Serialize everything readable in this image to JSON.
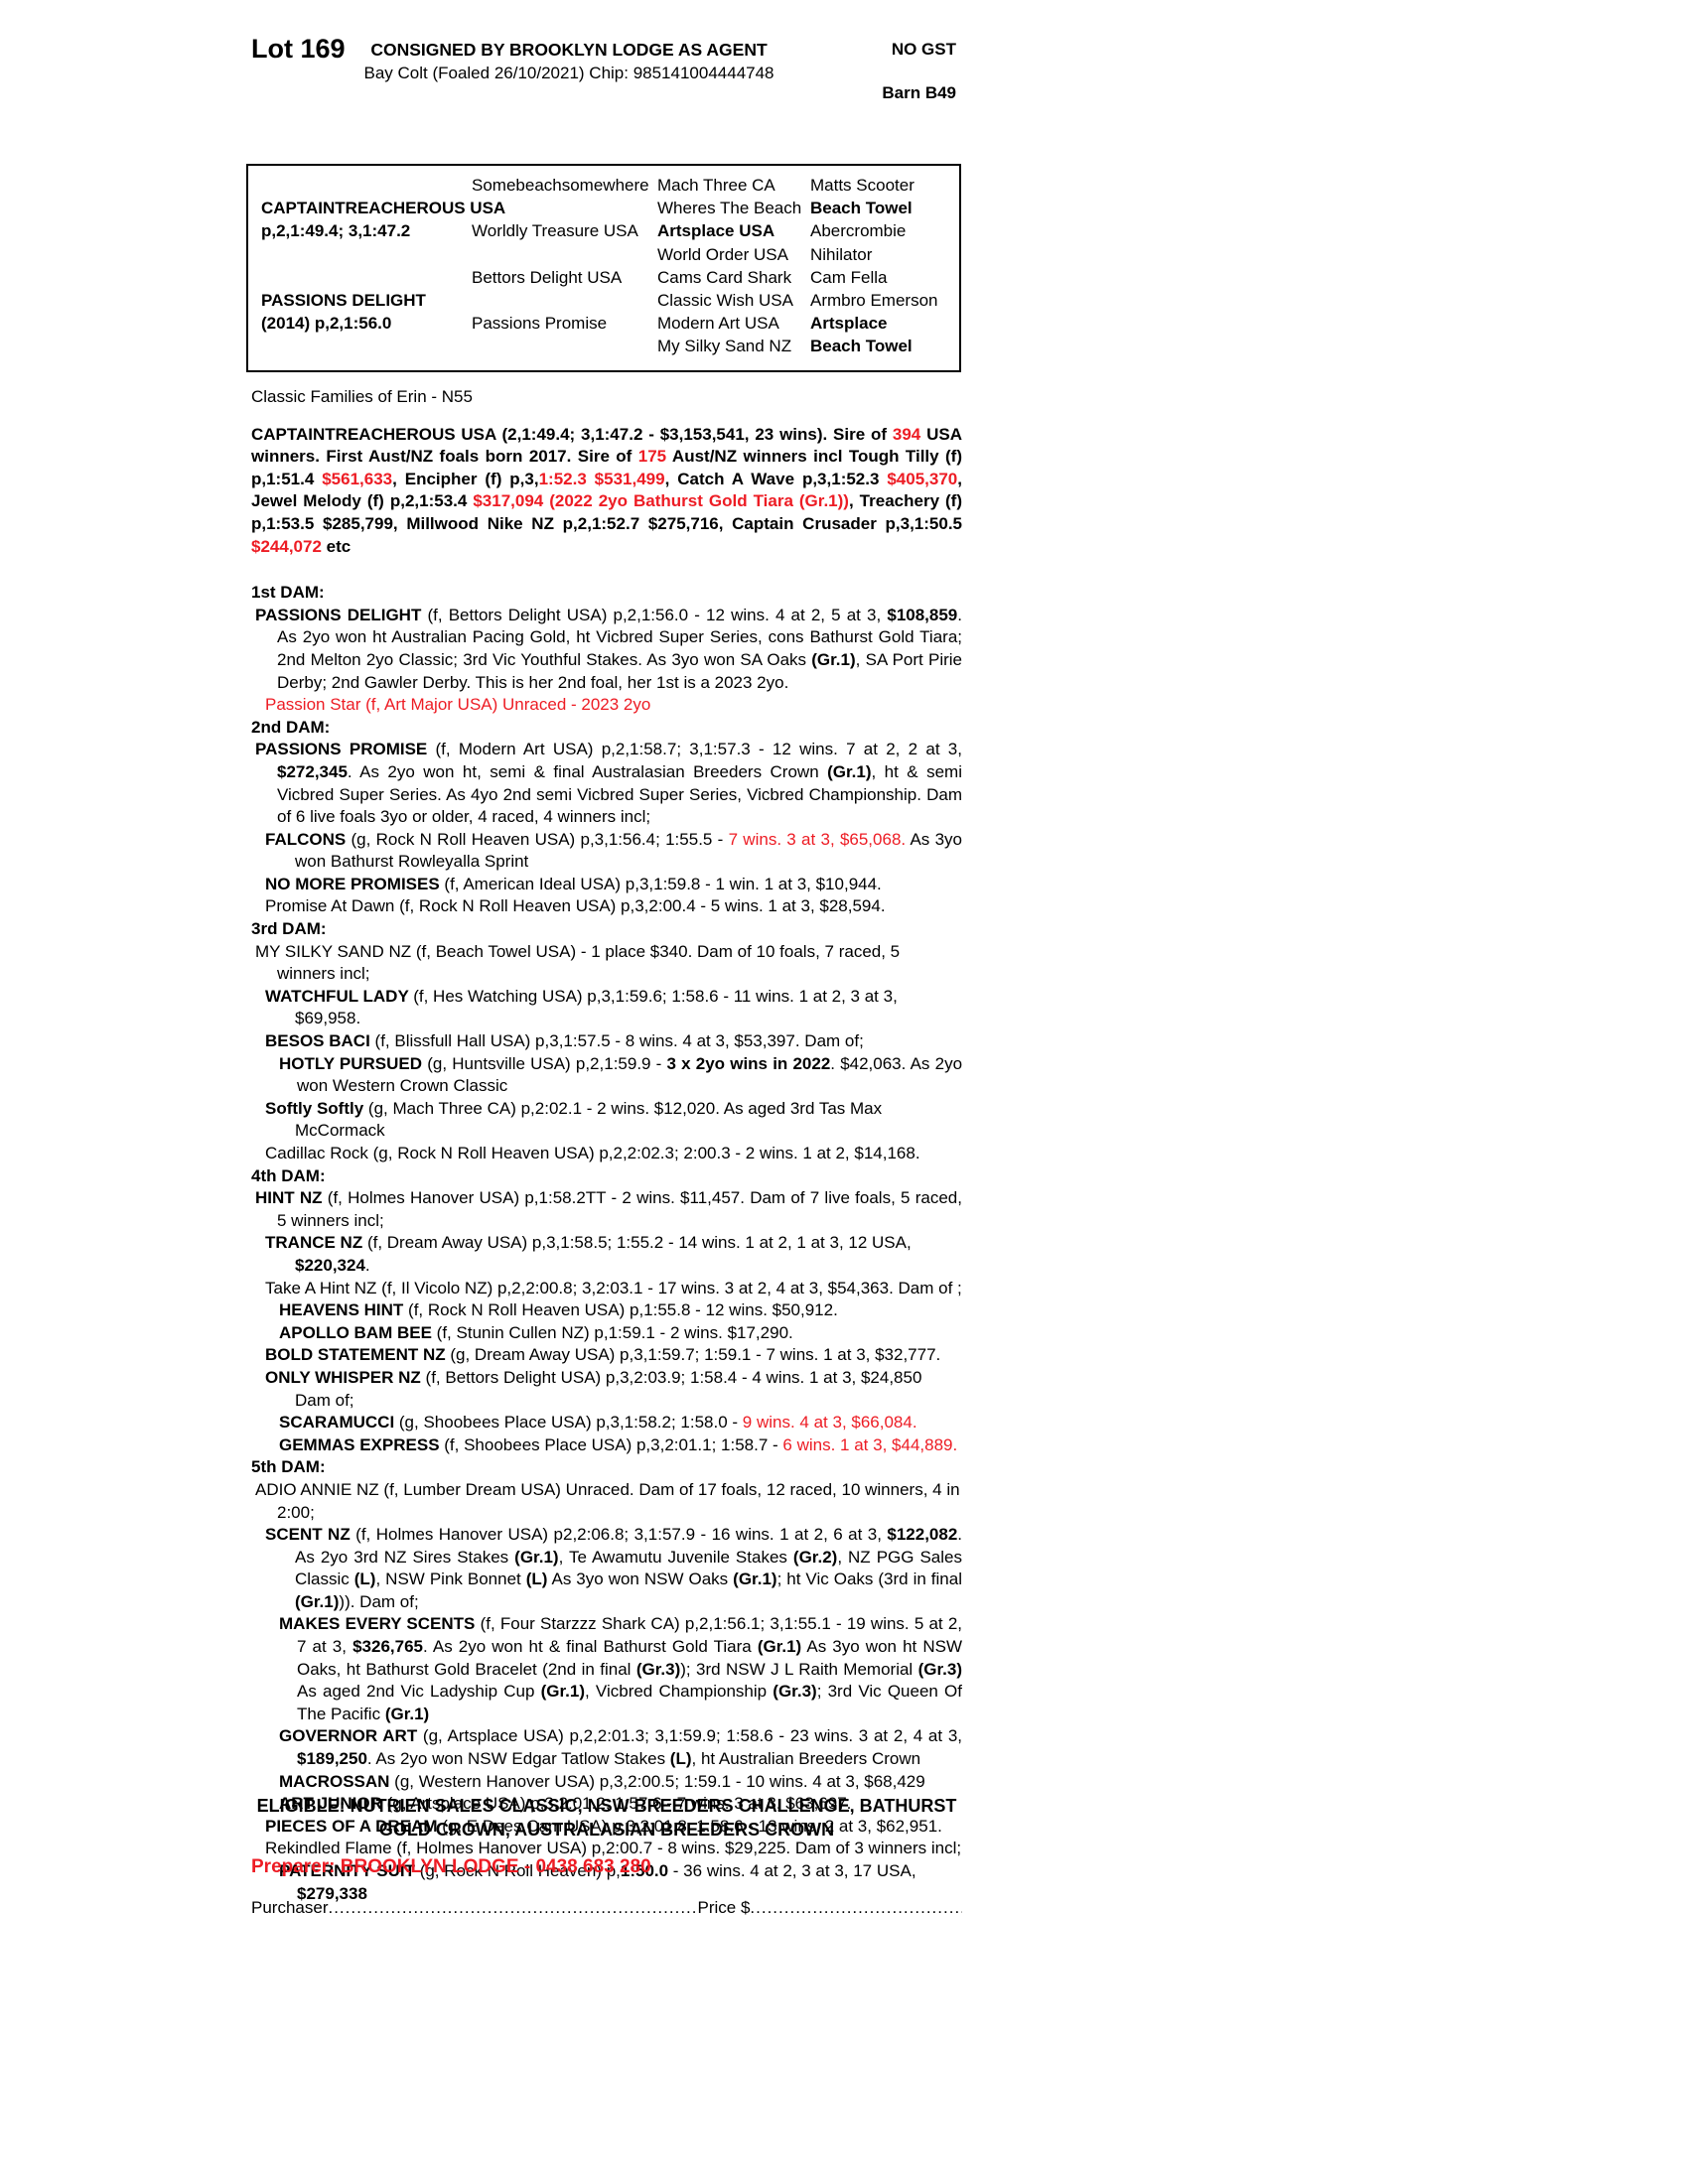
{
  "colors": {
    "red": "#ed1c24",
    "text": "#000000"
  },
  "header": {
    "lot": "Lot 169",
    "consigned": "CONSIGNED BY BROOKLYN LODGE AS AGENT",
    "subtitle": "Bay Colt (Foaled 26/10/2021) Chip: 985141004444748",
    "no_gst": "NO GST",
    "barn": "Barn B49"
  },
  "pedigree": {
    "cols": [
      [
        [
          "",
          0
        ],
        [
          "CAPTAINTREACHEROUS USA",
          1
        ],
        [
          "p,2,1:49.4; 3,1:47.2",
          1
        ],
        [
          "",
          0
        ],
        [
          "",
          0
        ],
        [
          "PASSIONS DELIGHT",
          1
        ],
        [
          "(2014) p,2,1:56.0",
          1
        ],
        [
          "",
          0
        ]
      ],
      [
        [
          "Somebeachsomewhere",
          0
        ],
        [
          "",
          0
        ],
        [
          "Worldly Treasure USA",
          0
        ],
        [
          "",
          0
        ],
        [
          "Bettors Delight USA",
          0
        ],
        [
          "",
          0
        ],
        [
          "Passions Promise",
          0
        ],
        [
          "",
          0
        ]
      ],
      [
        [
          "Mach Three CA",
          0
        ],
        [
          "Wheres The Beach",
          0
        ],
        [
          "Artsplace USA",
          1
        ],
        [
          "World Order USA",
          0
        ],
        [
          "Cams Card Shark",
          0
        ],
        [
          "Classic Wish USA",
          0
        ],
        [
          "Modern Art USA",
          0
        ],
        [
          "My Silky Sand NZ",
          0
        ]
      ],
      [
        [
          "Matts Scooter",
          0
        ],
        [
          "Beach Towel",
          1
        ],
        [
          "Abercrombie",
          0
        ],
        [
          "Nihilator",
          0
        ],
        [
          "Cam Fella",
          0
        ],
        [
          "Armbro Emerson",
          0
        ],
        [
          "Artsplace",
          1
        ],
        [
          "Beach Towel",
          1
        ]
      ]
    ]
  },
  "body": [
    {
      "name": "family-line",
      "cls": "",
      "mt": 0,
      "segs": [
        [
          "n",
          "Classic Families of Erin - N55"
        ]
      ]
    },
    {
      "name": "sire-paragraph",
      "cls": "just",
      "mt": 15,
      "segs": [
        [
          "b",
          "CAPTAINTREACHEROUS USA (2,1:49.4; 3,1:47.2 - $3,153,541, 23 wins). Sire of "
        ],
        [
          "r",
          "394"
        ],
        [
          "b",
          " USA winners. First Aust/NZ foals born 2017. Sire of "
        ],
        [
          "r",
          "175"
        ],
        [
          "b",
          " Aust/NZ winners incl Tough Tilly (f) p,1:51.4 "
        ],
        [
          "r",
          "$561,633"
        ],
        [
          "b",
          ", Encipher (f) p,3,"
        ],
        [
          "r",
          "1:52.3 $531,499"
        ],
        [
          "b",
          ", Catch A Wave p,3,1:52.3 "
        ],
        [
          "r",
          "$405,370"
        ],
        [
          "b",
          ", Jewel Melody (f) p,2,1:53.4 "
        ],
        [
          "r",
          "$317,094 (2022 2yo Bathurst Gold Tiara (Gr.1))"
        ],
        [
          "b",
          ", Treachery (f) p,1:53.5 $285,799, Millwood Nike NZ p,2,1:52.7 $275,716, Captain Crusader p,3,1:50.5 "
        ],
        [
          "r",
          "$244,072"
        ],
        [
          "b",
          " etc"
        ]
      ]
    },
    {
      "name": "dam1-heading",
      "cls": "",
      "mt": 24,
      "segs": [
        [
          "b",
          "1st DAM:"
        ]
      ]
    },
    {
      "name": "dam1-passions-delight",
      "cls": "i1 just",
      "mt": 0,
      "segs": [
        [
          "b",
          "PASSIONS DELIGHT "
        ],
        [
          "n",
          "(f, Bettors Delight USA) p,2,1:56.0 - 12 wins. 4 at 2, 5 at 3, "
        ],
        [
          "b",
          "$108,859"
        ],
        [
          "n",
          ". As 2yo won ht Australian Pacing Gold, ht Vicbred Super Series, cons Bathurst Gold Tiara; 2nd Melton 2yo Classic; 3rd Vic Youthful Stakes. As 3yo won SA Oaks "
        ],
        [
          "b",
          "(Gr.1)"
        ],
        [
          "n",
          ", SA Port Pirie Derby; 2nd Gawler Derby. This is her 2nd foal, her 1st is a 2023 2yo."
        ]
      ]
    },
    {
      "name": "passion-star-line",
      "cls": "ired",
      "mt": 0,
      "segs": [
        [
          "rn",
          "Passion Star (f, Art Major USA) Unraced - 2023 2yo"
        ]
      ]
    },
    {
      "name": "dam2-heading",
      "cls": "",
      "mt": 0,
      "segs": [
        [
          "b",
          "2nd DAM:"
        ]
      ]
    },
    {
      "name": "dam2-passions-promise",
      "cls": "i1 just",
      "mt": 0,
      "segs": [
        [
          "b",
          "PASSIONS PROMISE "
        ],
        [
          "n",
          "(f, Modern Art USA) p,2,1:58.7; 3,1:57.3 - 12 wins. 7 at 2, 2 at 3, "
        ],
        [
          "b",
          "$272,345"
        ],
        [
          "n",
          ". As 2yo won ht, semi & final Australasian Breeders Crown "
        ],
        [
          "b",
          "(Gr.1)"
        ],
        [
          "n",
          ", ht & semi Vicbred Super Series. As 4yo 2nd semi Vicbred Super Series, Vicbred Championship. Dam of 6 live foals 3yo or older, 4 raced, 4 winners incl;"
        ]
      ]
    },
    {
      "name": "entry-falcons",
      "cls": "i2 just",
      "mt": 0,
      "segs": [
        [
          "b",
          "FALCONS "
        ],
        [
          "n",
          "(g, Rock N Roll Heaven USA) p,3,1:56.4; 1:55.5 - "
        ],
        [
          "rn",
          "7 wins. 3 at 3, $65,068."
        ],
        [
          "n",
          " As 3yo won Bathurst Rowleyalla Sprint"
        ]
      ]
    },
    {
      "name": "entry-no-more-promises",
      "cls": "i2",
      "mt": 0,
      "segs": [
        [
          "b",
          "NO MORE PROMISES "
        ],
        [
          "n",
          "(f, American Ideal USA) p,3,1:59.8 - 1 win. 1 at 3, $10,944."
        ]
      ]
    },
    {
      "name": "entry-promise-at-dawn",
      "cls": "i2",
      "mt": 0,
      "segs": [
        [
          "n",
          "Promise At Dawn (f, Rock N Roll Heaven USA) p,3,2:00.4 - 5 wins. 1 at 3, $28,594."
        ]
      ]
    },
    {
      "name": "dam3-heading",
      "cls": "",
      "mt": 0,
      "segs": [
        [
          "b",
          "3rd DAM:"
        ]
      ]
    },
    {
      "name": "dam3-my-silky-sand",
      "cls": "i1",
      "mt": 0,
      "segs": [
        [
          "n",
          "MY SILKY SAND NZ (f, Beach Towel USA) - 1 place $340. Dam of 10 foals, 7 raced, 5 winners incl;"
        ]
      ]
    },
    {
      "name": "entry-watchful-lady",
      "cls": "i2",
      "mt": 0,
      "segs": [
        [
          "b",
          "WATCHFUL LADY "
        ],
        [
          "n",
          "(f, Hes Watching USA) p,3,1:59.6; 1:58.6 - 11 wins. 1 at 2, 3 at 3, $69,958."
        ]
      ]
    },
    {
      "name": "entry-besos-baci",
      "cls": "i2",
      "mt": 0,
      "segs": [
        [
          "b",
          "BESOS BACI "
        ],
        [
          "n",
          "(f, Blissfull Hall USA) p,3,1:57.5 - 8 wins. 4 at 3, $53,397. Dam of;"
        ]
      ]
    },
    {
      "name": "entry-hotly-pursued",
      "cls": "i3 just",
      "mt": 0,
      "segs": [
        [
          "b",
          "HOTLY PURSUED "
        ],
        [
          "n",
          "(g, Huntsville USA) p,2,1:59.9 - "
        ],
        [
          "b",
          "3 x 2yo wins in 2022"
        ],
        [
          "n",
          ". $42,063. As 2yo won Western Crown Classic"
        ]
      ]
    },
    {
      "name": "entry-softly-softly",
      "cls": "i2",
      "mt": 0,
      "segs": [
        [
          "b",
          "Softly Softly "
        ],
        [
          "n",
          "(g, Mach Three CA) p,2:02.1 - 2 wins. $12,020. As aged 3rd Tas Max McCormack"
        ]
      ]
    },
    {
      "name": "entry-cadillac-rock",
      "cls": "i2",
      "mt": 0,
      "segs": [
        [
          "n",
          "Cadillac Rock (g, Rock N Roll Heaven USA) p,2,2:02.3; 2:00.3 - 2 wins. 1 at 2, $14,168."
        ]
      ]
    },
    {
      "name": "dam4-heading",
      "cls": "",
      "mt": 0,
      "segs": [
        [
          "b",
          "4th DAM:"
        ]
      ]
    },
    {
      "name": "dam4-hint-nz",
      "cls": "i1 just",
      "mt": 0,
      "segs": [
        [
          "b",
          "HINT NZ "
        ],
        [
          "n",
          "(f, Holmes Hanover USA) p,1:58.2TT - 2 wins. $11,457. Dam of 7 live foals, 5 raced, 5 winners incl;"
        ]
      ]
    },
    {
      "name": "entry-trance-nz",
      "cls": "i2",
      "mt": 0,
      "segs": [
        [
          "b",
          "TRANCE NZ "
        ],
        [
          "n",
          "(f, Dream Away USA) p,3,1:58.5; 1:55.2 - 14 wins. 1 at 2, 1 at 3, 12 USA, "
        ],
        [
          "b",
          "$220,324"
        ],
        [
          "n",
          "."
        ]
      ]
    },
    {
      "name": "entry-take-a-hint",
      "cls": "i2",
      "mt": 0,
      "segs": [
        [
          "n",
          "Take A Hint NZ (f, Il Vicolo NZ) p,2,2:00.8; 3,2:03.1 - 17 wins. 3 at 2, 4 at 3, $54,363. Dam of ;"
        ]
      ]
    },
    {
      "name": "entry-heavens-hint",
      "cls": "i3",
      "mt": 0,
      "segs": [
        [
          "b",
          "HEAVENS HINT "
        ],
        [
          "n",
          "(f, Rock N Roll Heaven USA) p,1:55.8 - 12 wins. $50,912."
        ]
      ]
    },
    {
      "name": "entry-apollo-bam-bee",
      "cls": "i3",
      "mt": 0,
      "segs": [
        [
          "b",
          "APOLLO BAM BEE "
        ],
        [
          "n",
          "(f, Stunin Cullen NZ) p,1:59.1 - 2 wins. $17,290."
        ]
      ]
    },
    {
      "name": "entry-bold-statement",
      "cls": "i2",
      "mt": 0,
      "segs": [
        [
          "b",
          "BOLD STATEMENT NZ "
        ],
        [
          "n",
          "(g, Dream Away USA) p,3,1:59.7; 1:59.1 - 7 wins. 1 at 3, $32,777."
        ]
      ]
    },
    {
      "name": "entry-only-whisper",
      "cls": "i2",
      "mt": 0,
      "segs": [
        [
          "b",
          "ONLY WHISPER NZ "
        ],
        [
          "n",
          "(f, Bettors Delight USA) p,3,2:03.9; 1:58.4 - 4 wins. 1 at 3, $24,850 Dam of;"
        ]
      ]
    },
    {
      "name": "entry-scaramucci",
      "cls": "i3",
      "mt": 0,
      "segs": [
        [
          "b",
          "SCARAMUCCI "
        ],
        [
          "n",
          "(g, Shoobees Place USA) p,3,1:58.2; 1:58.0 - "
        ],
        [
          "rn",
          "9 wins. 4 at 3, $66,084."
        ]
      ]
    },
    {
      "name": "entry-gemmas-express",
      "cls": "i3",
      "mt": 0,
      "segs": [
        [
          "b",
          "GEMMAS EXPRESS "
        ],
        [
          "n",
          "(f, Shoobees Place USA) p,3,2:01.1; 1:58.7 - "
        ],
        [
          "rn",
          "6 wins. 1 at 3, $44,889."
        ]
      ]
    },
    {
      "name": "dam5-heading",
      "cls": "",
      "mt": 0,
      "segs": [
        [
          "b",
          "5th DAM:"
        ]
      ]
    },
    {
      "name": "dam5-adio-annie",
      "cls": "i1",
      "mt": 0,
      "segs": [
        [
          "n",
          "ADIO ANNIE NZ (f, Lumber Dream USA) Unraced. Dam of 17 foals, 12 raced, 10 winners, 4 in 2:00;"
        ]
      ]
    },
    {
      "name": "entry-scent-nz",
      "cls": "i2 just",
      "mt": 0,
      "segs": [
        [
          "b",
          "SCENT NZ "
        ],
        [
          "n",
          "(f, Holmes Hanover USA) p2,2:06.8; 3,1:57.9 - 16 wins. 1 at 2, 6 at 3, "
        ],
        [
          "b",
          "$122,082"
        ],
        [
          "n",
          ". As 2yo 3rd NZ Sires Stakes "
        ],
        [
          "b",
          "(Gr.1)"
        ],
        [
          "n",
          ", Te Awamutu Juvenile Stakes "
        ],
        [
          "b",
          "(Gr.2)"
        ],
        [
          "n",
          ", NZ PGG Sales Classic "
        ],
        [
          "b",
          "(L)"
        ],
        [
          "n",
          ", NSW Pink Bonnet "
        ],
        [
          "b",
          "(L)"
        ],
        [
          "n",
          " As 3yo won NSW Oaks "
        ],
        [
          "b",
          "(Gr.1)"
        ],
        [
          "n",
          "; ht Vic Oaks (3rd in final "
        ],
        [
          "b",
          "(Gr.1)"
        ],
        [
          "n",
          ")). Dam of;"
        ]
      ]
    },
    {
      "name": "entry-makes-every-scents",
      "cls": "i3 just",
      "mt": 0,
      "segs": [
        [
          "b",
          "MAKES EVERY SCENTS "
        ],
        [
          "n",
          "(f, Four Starzzz Shark CA) p,2,1:56.1; 3,1:55.1 - 19 wins. 5 at 2, 7 at 3, "
        ],
        [
          "b",
          "$326,765"
        ],
        [
          "n",
          ". As 2yo won ht & final Bathurst Gold Tiara "
        ],
        [
          "b",
          "(Gr.1)"
        ],
        [
          "n",
          " As 3yo won ht NSW Oaks, ht Bathurst Gold Bracelet (2nd in final "
        ],
        [
          "b",
          "(Gr.3)"
        ],
        [
          "n",
          "); 3rd NSW J L Raith Memorial "
        ],
        [
          "b",
          "(Gr.3)"
        ],
        [
          "n",
          " As aged 2nd Vic Ladyship Cup "
        ],
        [
          "b",
          "(Gr.1)"
        ],
        [
          "n",
          ", Vicbred Championship "
        ],
        [
          "b",
          "(Gr.3)"
        ],
        [
          "n",
          "; 3rd Vic Queen Of The Pacific "
        ],
        [
          "b",
          "(Gr.1)"
        ]
      ]
    },
    {
      "name": "entry-governor-art",
      "cls": "i3 just",
      "mt": 0,
      "segs": [
        [
          "b",
          "GOVERNOR ART "
        ],
        [
          "n",
          "(g, Artsplace USA) p,2,2:01.3; 3,1:59.9; 1:58.6 - 23 wins. 3 at 2, 4 at 3, "
        ],
        [
          "b",
          "$189,250"
        ],
        [
          "n",
          ". As 2yo won NSW Edgar Tatlow Stakes "
        ],
        [
          "b",
          "(L)"
        ],
        [
          "n",
          ", ht Australian Breeders Crown"
        ]
      ]
    },
    {
      "name": "entry-macrossan",
      "cls": "i3",
      "mt": 0,
      "segs": [
        [
          "b",
          "MACROSSAN "
        ],
        [
          "n",
          "(g, Western Hanover USA) p,3,2:00.5; 1:59.1 - 10 wins. 4 at 3, $68,429"
        ]
      ]
    },
    {
      "name": "entry-art-junior",
      "cls": "i3",
      "mt": 0,
      "segs": [
        [
          "b",
          "ART JUNIOR "
        ],
        [
          "n",
          "(g, Artsplace USA) p,3,2:01.2; 1:57.6 - 7 wins. 3 at 3, $63,697."
        ]
      ]
    },
    {
      "name": "entry-pieces-of-a-dream",
      "cls": "i2",
      "mt": 0,
      "segs": [
        [
          "b",
          "PIECES OF A DREAM "
        ],
        [
          "n",
          "(g, E Dees Cam USA) p,3,2:01.8; 1:58.6 - 13 wins. 2 at 3, $62,951."
        ]
      ]
    },
    {
      "name": "entry-rekindled-flame",
      "cls": "i2",
      "mt": 0,
      "segs": [
        [
          "n",
          "Rekindled Flame (f, Holmes Hanover USA) p,2:00.7 - 8 wins. $29,225. Dam of 3 winners incl;"
        ]
      ]
    },
    {
      "name": "entry-paternity-suit",
      "cls": "i3",
      "mt": 0,
      "segs": [
        [
          "b",
          "PATERNITY SUIT "
        ],
        [
          "n",
          "(g, Rock N Roll Heaven) p,"
        ],
        [
          "b",
          "1:50.0"
        ],
        [
          "n",
          " - 36 wins. 4 at 2, 3 at 3, 17 USA, "
        ],
        [
          "b",
          "$279,338"
        ]
      ]
    }
  ],
  "eligible": [
    [
      "b",
      "ELIGIBLE: NUTRIEN SALES CLASSIC, NSW BREEDERS CHALLENGE, BATHURST"
    ],
    [
      "br",
      ""
    ],
    [
      "b",
      "GOLD CROWN, AUSTRALASIAN BREEDERS CROWN"
    ]
  ],
  "preparer": "Preparer: BROOKLYN LODGE - 0438 683 280",
  "purchaser_line": {
    "label": "Purchaser",
    "dots1": "......................................................................................................................................",
    "price_label": "Price $",
    "dots2": ".........................................................................."
  }
}
